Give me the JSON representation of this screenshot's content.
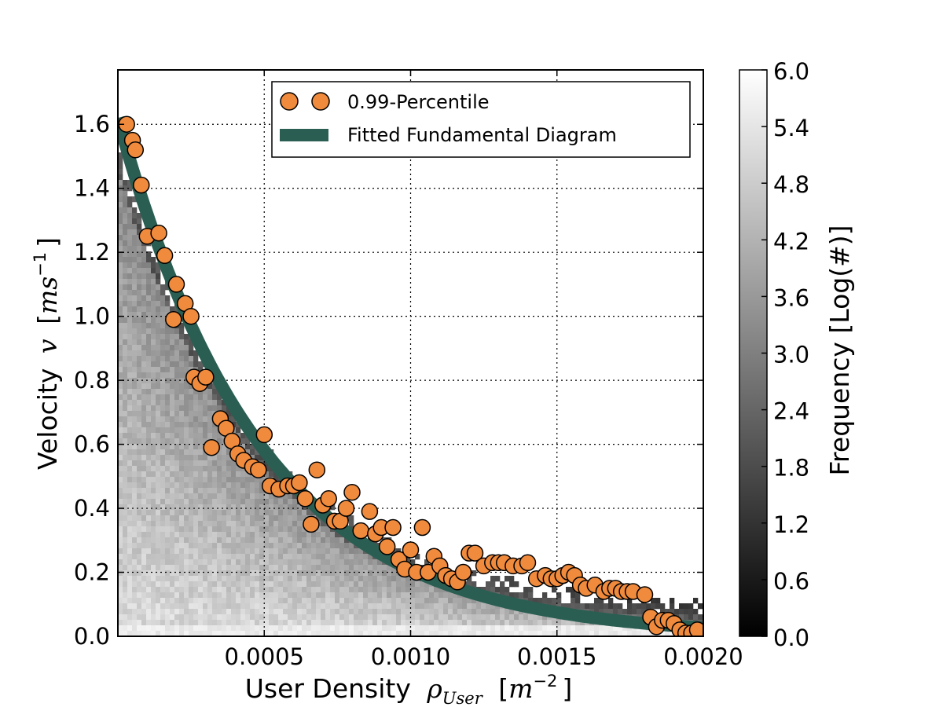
{
  "chart_data": {
    "type": "scatter",
    "xlabel": "User Density",
    "xlabel_symbol": "ρ",
    "xlabel_subscript": "User",
    "xlabel_units_base": "m",
    "xlabel_units_exp": "−2",
    "ylabel": "Velocity",
    "ylabel_symbol": "v",
    "ylabel_units_base": "ms",
    "ylabel_units_exp": "−1",
    "xlim": [
      0.0,
      0.002
    ],
    "ylim": [
      0.0,
      1.77
    ],
    "x_ticks": [
      {
        "value": 0.0005,
        "label": "0.0005"
      },
      {
        "value": 0.001,
        "label": "0.0010"
      },
      {
        "value": 0.0015,
        "label": "0.0015"
      },
      {
        "value": 0.002,
        "label": "0.0020"
      }
    ],
    "y_ticks": [
      {
        "value": 0.0,
        "label": "0.0"
      },
      {
        "value": 0.2,
        "label": "0.2"
      },
      {
        "value": 0.4,
        "label": "0.4"
      },
      {
        "value": 0.6,
        "label": "0.6"
      },
      {
        "value": 0.8,
        "label": "0.8"
      },
      {
        "value": 1.0,
        "label": "1.0"
      },
      {
        "value": 1.2,
        "label": "1.2"
      },
      {
        "value": 1.4,
        "label": "1.4"
      },
      {
        "value": 1.6,
        "label": "1.6"
      }
    ],
    "grid": true,
    "legend_position": "top-right",
    "colorbar": {
      "label": "Frequency [Log(#)]",
      "range": [
        0.0,
        6.0
      ],
      "ticks": [
        "0.0",
        "0.6",
        "1.2",
        "1.8",
        "2.4",
        "3.0",
        "3.6",
        "4.2",
        "4.8",
        "5.4",
        "6.0"
      ],
      "colormap": "gray"
    },
    "series": [
      {
        "name": "0.99-Percentile",
        "kind": "scatter",
        "color": "#f08a3c",
        "points": [
          [
            3e-05,
            1.6
          ],
          [
            5e-05,
            1.55
          ],
          [
            6e-05,
            1.52
          ],
          [
            8e-05,
            1.41
          ],
          [
            0.0001,
            1.25
          ],
          [
            0.00014,
            1.26
          ],
          [
            0.00016,
            1.19
          ],
          [
            0.00019,
            0.99
          ],
          [
            0.0002,
            1.1
          ],
          [
            0.00023,
            1.04
          ],
          [
            0.00025,
            1.0
          ],
          [
            0.00026,
            0.81
          ],
          [
            0.00028,
            0.79
          ],
          [
            0.0003,
            0.81
          ],
          [
            0.00032,
            0.59
          ],
          [
            0.00035,
            0.68
          ],
          [
            0.00037,
            0.65
          ],
          [
            0.00039,
            0.61
          ],
          [
            0.00041,
            0.57
          ],
          [
            0.00043,
            0.55
          ],
          [
            0.00046,
            0.53
          ],
          [
            0.00048,
            0.52
          ],
          [
            0.0005,
            0.63
          ],
          [
            0.00052,
            0.47
          ],
          [
            0.00055,
            0.46
          ],
          [
            0.00058,
            0.47
          ],
          [
            0.0006,
            0.47
          ],
          [
            0.00062,
            0.48
          ],
          [
            0.00064,
            0.43
          ],
          [
            0.00066,
            0.35
          ],
          [
            0.00068,
            0.52
          ],
          [
            0.0007,
            0.41
          ],
          [
            0.00072,
            0.43
          ],
          [
            0.00074,
            0.36
          ],
          [
            0.00076,
            0.36
          ],
          [
            0.00078,
            0.4
          ],
          [
            0.0008,
            0.45
          ],
          [
            0.00083,
            0.33
          ],
          [
            0.00086,
            0.39
          ],
          [
            0.00088,
            0.32
          ],
          [
            0.0009,
            0.34
          ],
          [
            0.00092,
            0.28
          ],
          [
            0.00094,
            0.34
          ],
          [
            0.00096,
            0.24
          ],
          [
            0.00098,
            0.21
          ],
          [
            0.001,
            0.27
          ],
          [
            0.00102,
            0.2
          ],
          [
            0.00104,
            0.34
          ],
          [
            0.00106,
            0.2
          ],
          [
            0.00108,
            0.25
          ],
          [
            0.0011,
            0.22
          ],
          [
            0.00112,
            0.19
          ],
          [
            0.00114,
            0.18
          ],
          [
            0.00116,
            0.17
          ],
          [
            0.00118,
            0.2
          ],
          [
            0.0012,
            0.26
          ],
          [
            0.00122,
            0.26
          ],
          [
            0.00125,
            0.22
          ],
          [
            0.00128,
            0.23
          ],
          [
            0.0013,
            0.23
          ],
          [
            0.00132,
            0.23
          ],
          [
            0.00135,
            0.22
          ],
          [
            0.00138,
            0.22
          ],
          [
            0.0014,
            0.23
          ],
          [
            0.00143,
            0.18
          ],
          [
            0.00146,
            0.19
          ],
          [
            0.00148,
            0.18
          ],
          [
            0.0015,
            0.18
          ],
          [
            0.00152,
            0.19
          ],
          [
            0.00154,
            0.2
          ],
          [
            0.00156,
            0.19
          ],
          [
            0.00158,
            0.16
          ],
          [
            0.0016,
            0.15
          ],
          [
            0.00163,
            0.16
          ],
          [
            0.00166,
            0.14
          ],
          [
            0.00168,
            0.15
          ],
          [
            0.0017,
            0.15
          ],
          [
            0.00172,
            0.14
          ],
          [
            0.00174,
            0.14
          ],
          [
            0.00176,
            0.14
          ],
          [
            0.0018,
            0.13
          ],
          [
            0.00182,
            0.06
          ],
          [
            0.00184,
            0.03
          ],
          [
            0.00186,
            0.05
          ],
          [
            0.00188,
            0.05
          ],
          [
            0.0019,
            0.04
          ],
          [
            0.00192,
            0.02
          ],
          [
            0.00194,
            0.01
          ],
          [
            0.00196,
            0.01
          ],
          [
            0.00198,
            0.02
          ]
        ]
      },
      {
        "name": "Fitted Fundamental Diagram",
        "kind": "line",
        "color": "#2b5e52",
        "model": "v = 1.62 * exp(-2050 * rho)"
      }
    ]
  }
}
